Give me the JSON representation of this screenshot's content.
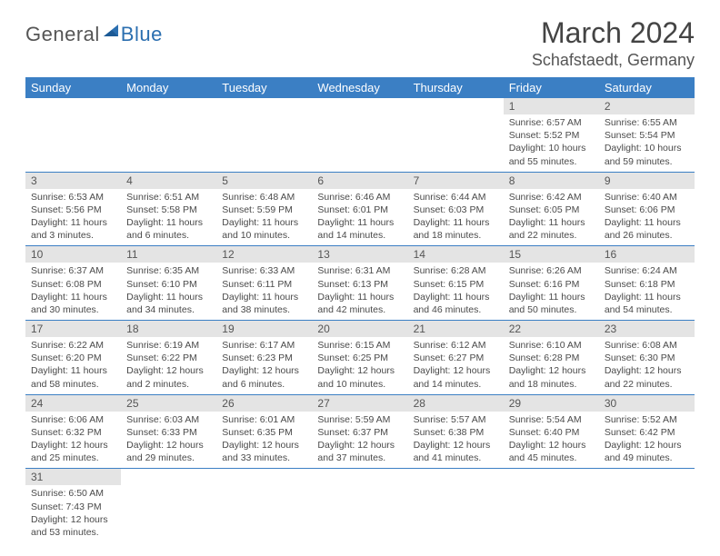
{
  "logo": {
    "part1": "General",
    "part2": "Blue"
  },
  "header": {
    "title": "March 2024",
    "location": "Schafstaedt, Germany"
  },
  "colors": {
    "header_bg": "#3b7fc4",
    "header_text": "#ffffff",
    "daynum_bg": "#e4e4e4",
    "row_divider": "#3b7fc4",
    "logo_blue": "#2b6fb0"
  },
  "fonts": {
    "title_size": 32,
    "location_size": 18,
    "dayhead_size": 13,
    "cell_size": 10.5
  },
  "dayHeaders": [
    "Sunday",
    "Monday",
    "Tuesday",
    "Wednesday",
    "Thursday",
    "Friday",
    "Saturday"
  ],
  "weeks": [
    [
      null,
      null,
      null,
      null,
      null,
      {
        "n": "1",
        "sr": "Sunrise: 6:57 AM",
        "ss": "Sunset: 5:52 PM",
        "d1": "Daylight: 10 hours",
        "d2": "and 55 minutes."
      },
      {
        "n": "2",
        "sr": "Sunrise: 6:55 AM",
        "ss": "Sunset: 5:54 PM",
        "d1": "Daylight: 10 hours",
        "d2": "and 59 minutes."
      }
    ],
    [
      {
        "n": "3",
        "sr": "Sunrise: 6:53 AM",
        "ss": "Sunset: 5:56 PM",
        "d1": "Daylight: 11 hours",
        "d2": "and 3 minutes."
      },
      {
        "n": "4",
        "sr": "Sunrise: 6:51 AM",
        "ss": "Sunset: 5:58 PM",
        "d1": "Daylight: 11 hours",
        "d2": "and 6 minutes."
      },
      {
        "n": "5",
        "sr": "Sunrise: 6:48 AM",
        "ss": "Sunset: 5:59 PM",
        "d1": "Daylight: 11 hours",
        "d2": "and 10 minutes."
      },
      {
        "n": "6",
        "sr": "Sunrise: 6:46 AM",
        "ss": "Sunset: 6:01 PM",
        "d1": "Daylight: 11 hours",
        "d2": "and 14 minutes."
      },
      {
        "n": "7",
        "sr": "Sunrise: 6:44 AM",
        "ss": "Sunset: 6:03 PM",
        "d1": "Daylight: 11 hours",
        "d2": "and 18 minutes."
      },
      {
        "n": "8",
        "sr": "Sunrise: 6:42 AM",
        "ss": "Sunset: 6:05 PM",
        "d1": "Daylight: 11 hours",
        "d2": "and 22 minutes."
      },
      {
        "n": "9",
        "sr": "Sunrise: 6:40 AM",
        "ss": "Sunset: 6:06 PM",
        "d1": "Daylight: 11 hours",
        "d2": "and 26 minutes."
      }
    ],
    [
      {
        "n": "10",
        "sr": "Sunrise: 6:37 AM",
        "ss": "Sunset: 6:08 PM",
        "d1": "Daylight: 11 hours",
        "d2": "and 30 minutes."
      },
      {
        "n": "11",
        "sr": "Sunrise: 6:35 AM",
        "ss": "Sunset: 6:10 PM",
        "d1": "Daylight: 11 hours",
        "d2": "and 34 minutes."
      },
      {
        "n": "12",
        "sr": "Sunrise: 6:33 AM",
        "ss": "Sunset: 6:11 PM",
        "d1": "Daylight: 11 hours",
        "d2": "and 38 minutes."
      },
      {
        "n": "13",
        "sr": "Sunrise: 6:31 AM",
        "ss": "Sunset: 6:13 PM",
        "d1": "Daylight: 11 hours",
        "d2": "and 42 minutes."
      },
      {
        "n": "14",
        "sr": "Sunrise: 6:28 AM",
        "ss": "Sunset: 6:15 PM",
        "d1": "Daylight: 11 hours",
        "d2": "and 46 minutes."
      },
      {
        "n": "15",
        "sr": "Sunrise: 6:26 AM",
        "ss": "Sunset: 6:16 PM",
        "d1": "Daylight: 11 hours",
        "d2": "and 50 minutes."
      },
      {
        "n": "16",
        "sr": "Sunrise: 6:24 AM",
        "ss": "Sunset: 6:18 PM",
        "d1": "Daylight: 11 hours",
        "d2": "and 54 minutes."
      }
    ],
    [
      {
        "n": "17",
        "sr": "Sunrise: 6:22 AM",
        "ss": "Sunset: 6:20 PM",
        "d1": "Daylight: 11 hours",
        "d2": "and 58 minutes."
      },
      {
        "n": "18",
        "sr": "Sunrise: 6:19 AM",
        "ss": "Sunset: 6:22 PM",
        "d1": "Daylight: 12 hours",
        "d2": "and 2 minutes."
      },
      {
        "n": "19",
        "sr": "Sunrise: 6:17 AM",
        "ss": "Sunset: 6:23 PM",
        "d1": "Daylight: 12 hours",
        "d2": "and 6 minutes."
      },
      {
        "n": "20",
        "sr": "Sunrise: 6:15 AM",
        "ss": "Sunset: 6:25 PM",
        "d1": "Daylight: 12 hours",
        "d2": "and 10 minutes."
      },
      {
        "n": "21",
        "sr": "Sunrise: 6:12 AM",
        "ss": "Sunset: 6:27 PM",
        "d1": "Daylight: 12 hours",
        "d2": "and 14 minutes."
      },
      {
        "n": "22",
        "sr": "Sunrise: 6:10 AM",
        "ss": "Sunset: 6:28 PM",
        "d1": "Daylight: 12 hours",
        "d2": "and 18 minutes."
      },
      {
        "n": "23",
        "sr": "Sunrise: 6:08 AM",
        "ss": "Sunset: 6:30 PM",
        "d1": "Daylight: 12 hours",
        "d2": "and 22 minutes."
      }
    ],
    [
      {
        "n": "24",
        "sr": "Sunrise: 6:06 AM",
        "ss": "Sunset: 6:32 PM",
        "d1": "Daylight: 12 hours",
        "d2": "and 25 minutes."
      },
      {
        "n": "25",
        "sr": "Sunrise: 6:03 AM",
        "ss": "Sunset: 6:33 PM",
        "d1": "Daylight: 12 hours",
        "d2": "and 29 minutes."
      },
      {
        "n": "26",
        "sr": "Sunrise: 6:01 AM",
        "ss": "Sunset: 6:35 PM",
        "d1": "Daylight: 12 hours",
        "d2": "and 33 minutes."
      },
      {
        "n": "27",
        "sr": "Sunrise: 5:59 AM",
        "ss": "Sunset: 6:37 PM",
        "d1": "Daylight: 12 hours",
        "d2": "and 37 minutes."
      },
      {
        "n": "28",
        "sr": "Sunrise: 5:57 AM",
        "ss": "Sunset: 6:38 PM",
        "d1": "Daylight: 12 hours",
        "d2": "and 41 minutes."
      },
      {
        "n": "29",
        "sr": "Sunrise: 5:54 AM",
        "ss": "Sunset: 6:40 PM",
        "d1": "Daylight: 12 hours",
        "d2": "and 45 minutes."
      },
      {
        "n": "30",
        "sr": "Sunrise: 5:52 AM",
        "ss": "Sunset: 6:42 PM",
        "d1": "Daylight: 12 hours",
        "d2": "and 49 minutes."
      }
    ],
    [
      {
        "n": "31",
        "sr": "Sunrise: 6:50 AM",
        "ss": "Sunset: 7:43 PM",
        "d1": "Daylight: 12 hours",
        "d2": "and 53 minutes."
      },
      null,
      null,
      null,
      null,
      null,
      null
    ]
  ]
}
